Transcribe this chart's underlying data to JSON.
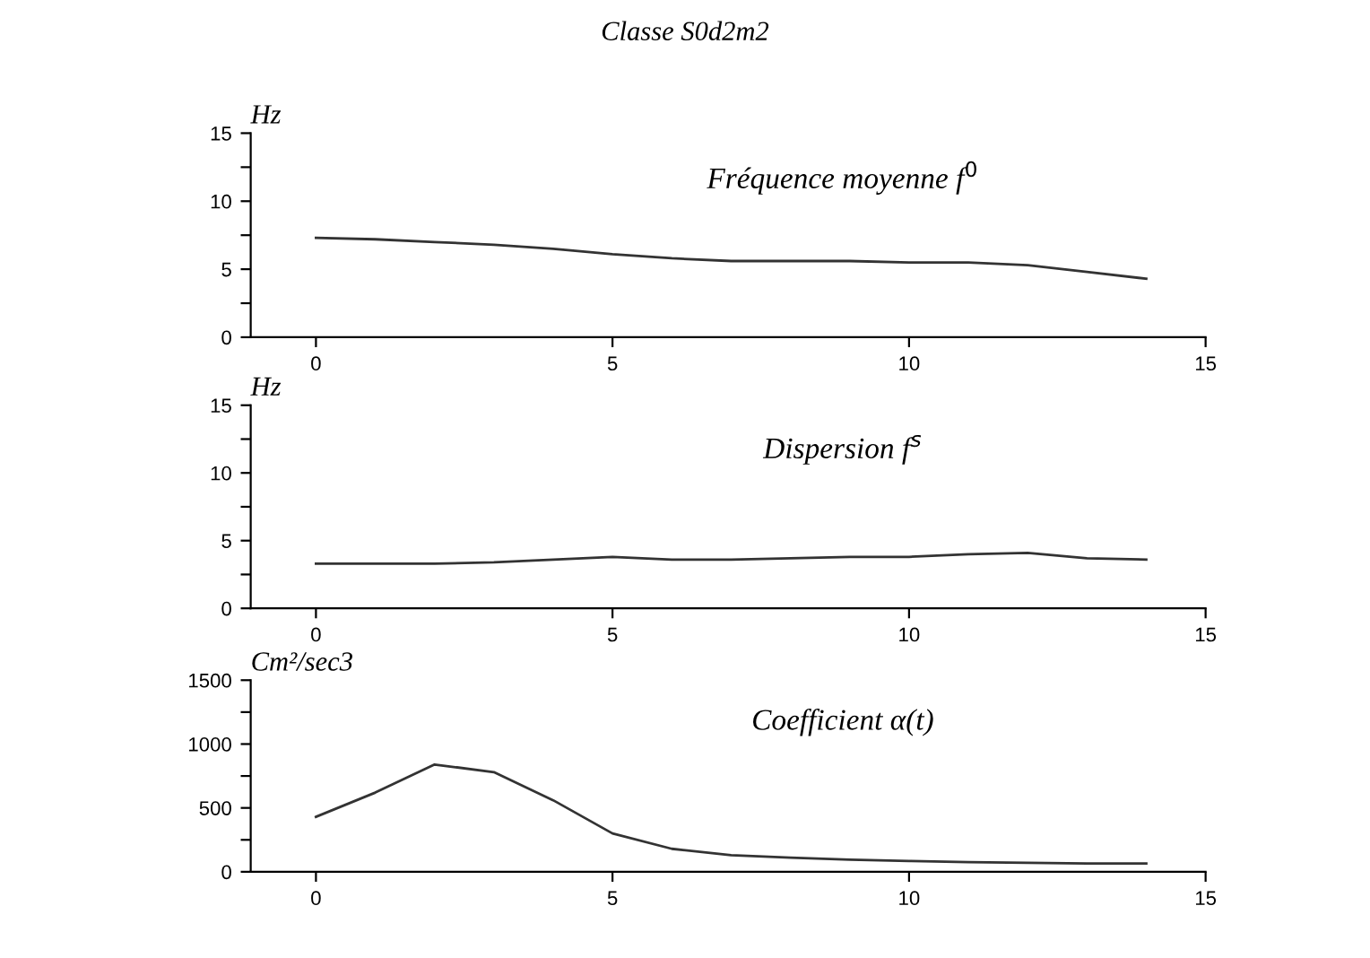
{
  "chart_data": [
    {
      "type": "line",
      "title": "Classe S0d2m2",
      "ylabel": "Hz",
      "annotations": [
        "Fréquence moyenne f$^{0}$"
      ],
      "x": [
        0,
        1,
        2,
        3,
        4,
        5,
        6,
        7,
        8,
        9,
        10,
        11,
        12,
        13,
        14
      ],
      "series": [
        {
          "color": "#333333",
          "values": [
            7.3,
            7.2,
            7.0,
            6.8,
            6.5,
            6.1,
            5.8,
            5.6,
            5.6,
            5.6,
            5.5,
            5.5,
            5.3,
            4.8,
            4.3
          ]
        }
      ],
      "xlim": [
        -1.1,
        15
      ],
      "xticks": [
        0,
        5,
        10,
        15
      ],
      "ylim": [
        0,
        15
      ],
      "yticks": [
        0,
        {
          "value": 2.5,
          "label": null
        },
        5,
        {
          "value": 7.5,
          "label": null
        },
        10,
        {
          "value": 12.5,
          "label": null
        },
        15
      ]
    },
    {
      "type": "line",
      "ylabel": "Hz",
      "annotations": [
        "Dispersion f$^{s}$"
      ],
      "x": [
        0,
        1,
        2,
        3,
        4,
        5,
        6,
        7,
        8,
        9,
        10,
        11,
        12,
        13,
        14
      ],
      "series": [
        {
          "color": "#333333",
          "values": [
            3.3,
            3.3,
            3.3,
            3.4,
            3.6,
            3.8,
            3.6,
            3.6,
            3.7,
            3.8,
            3.8,
            4.0,
            4.1,
            3.7,
            3.6
          ]
        }
      ],
      "xlim": [
        -1.1,
        15
      ],
      "xticks": [
        0,
        5,
        10,
        15
      ],
      "ylim": [
        0,
        15
      ],
      "yticks": [
        0,
        {
          "value": 2.5,
          "label": null
        },
        5,
        {
          "value": 7.5,
          "label": null
        },
        10,
        {
          "value": 12.5,
          "label": null
        },
        15
      ]
    },
    {
      "type": "line",
      "ylabel": "Cm²/sec3",
      "annotations": [
        "Coefficient α(t)"
      ],
      "x": [
        0,
        1,
        2,
        3,
        4,
        5,
        6,
        7,
        8,
        9,
        10,
        11,
        12,
        13,
        14
      ],
      "series": [
        {
          "color": "#333333",
          "values": [
            430,
            620,
            840,
            780,
            560,
            300,
            180,
            130,
            110,
            95,
            85,
            75,
            70,
            65,
            65
          ]
        }
      ],
      "xlim": [
        -1.1,
        15
      ],
      "xticks": [
        0,
        5,
        10,
        15
      ],
      "ylim": [
        0,
        1500
      ],
      "yticks": [
        0,
        {
          "value": 250,
          "label": null
        },
        500,
        {
          "value": 750,
          "label": null
        },
        1000,
        {
          "value": 1250,
          "label": null
        },
        1500
      ]
    }
  ]
}
